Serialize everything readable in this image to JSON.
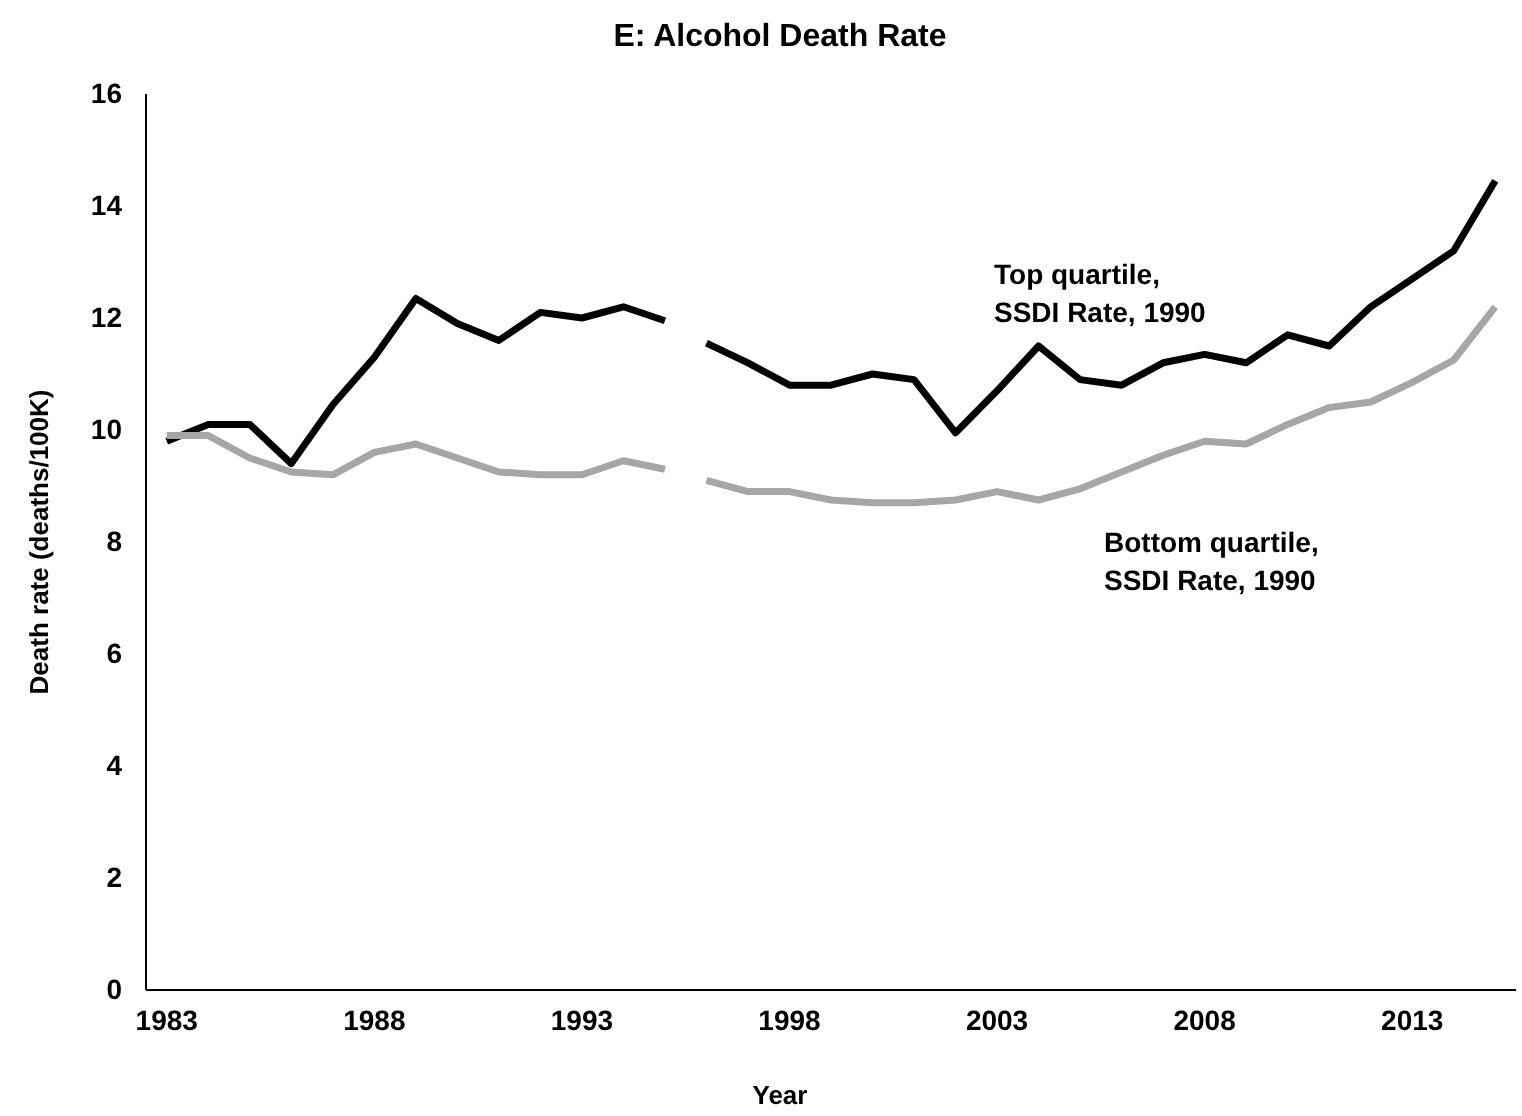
{
  "chart_data": {
    "type": "line",
    "title": "E: Alcohol Death Rate",
    "xlabel": "Year",
    "ylabel": "Death rate (deaths/100K)",
    "x": [
      1983,
      1984,
      1985,
      1986,
      1987,
      1988,
      1989,
      1990,
      1991,
      1992,
      1993,
      1994,
      1995,
      1995.5,
      1996,
      1997,
      1998,
      1999,
      2000,
      2001,
      2002,
      2003,
      2004,
      2005,
      2006,
      2007,
      2008,
      2009,
      2010,
      2011,
      2012,
      2013,
      2014,
      2015
    ],
    "series": [
      {
        "name": "Top quartile, SSDI Rate, 1990",
        "color": "#000000",
        "values": [
          9.8,
          10.1,
          10.1,
          9.4,
          10.45,
          11.3,
          12.35,
          11.9,
          11.6,
          12.1,
          12.0,
          12.2,
          11.95,
          null,
          11.55,
          11.2,
          10.8,
          10.8,
          11.0,
          10.9,
          9.95,
          10.7,
          11.5,
          10.9,
          10.8,
          11.2,
          11.35,
          11.2,
          11.7,
          11.5,
          12.2,
          12.7,
          13.2,
          14.45
        ]
      },
      {
        "name": "Bottom quartile, SSDI Rate, 1990",
        "color": "#a6a6a6",
        "values": [
          9.9,
          9.9,
          9.5,
          9.25,
          9.2,
          9.6,
          9.75,
          9.5,
          9.25,
          9.2,
          9.2,
          9.45,
          9.3,
          null,
          9.1,
          8.9,
          8.9,
          8.75,
          8.7,
          8.7,
          8.75,
          8.9,
          8.75,
          8.95,
          9.25,
          9.55,
          9.8,
          9.75,
          10.1,
          10.4,
          10.5,
          10.85,
          11.25,
          12.2
        ]
      }
    ],
    "xlim": [
      1982.5,
      2015.5
    ],
    "xticks": [
      1983,
      1988,
      1993,
      1998,
      2003,
      2008,
      2013
    ],
    "ylim": [
      0,
      16
    ],
    "yticks": [
      0,
      2,
      4,
      6,
      8,
      10,
      12,
      14,
      16
    ],
    "grid": false,
    "legend": false,
    "line_style": "solid",
    "marker": "none"
  }
}
